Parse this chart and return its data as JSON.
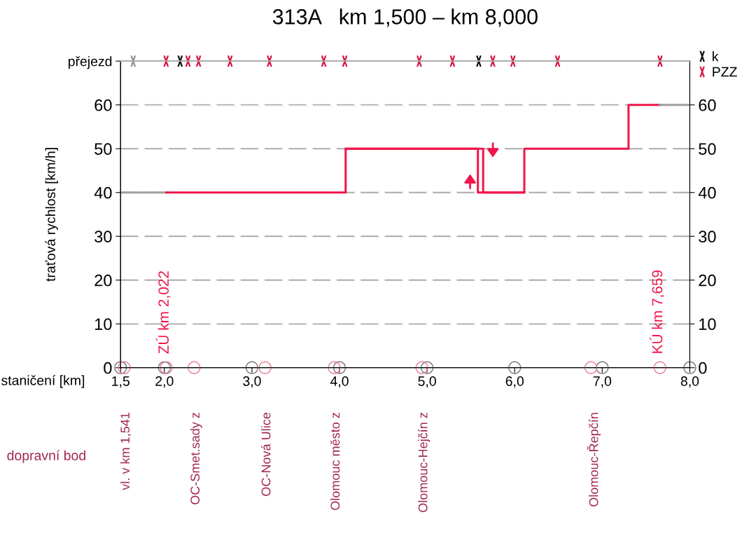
{
  "chart_data": {
    "type": "step",
    "title": "313A   km 1,500 – km 8,000",
    "xlabel": "staničení [km]",
    "ylabel": "traťová rychlost [km/h]",
    "xlim": [
      1.5,
      8.0
    ],
    "xticks": [
      {
        "value": 1.5,
        "label": "1,5"
      },
      {
        "value": 2,
        "label": "2,0"
      },
      {
        "value": 3,
        "label": "3,0"
      },
      {
        "value": 4,
        "label": "4,0"
      },
      {
        "value": 5,
        "label": "5,0"
      },
      {
        "value": 6,
        "label": "6,0"
      },
      {
        "value": 7,
        "label": "7,0"
      },
      {
        "value": 8,
        "label": "8,0"
      }
    ],
    "ylim": [
      0,
      70
    ],
    "yticks": [
      0,
      10,
      20,
      30,
      40,
      50,
      60,
      {
        "value": 70,
        "label": "přejezd"
      }
    ],
    "y2lim": [
      0,
      70
    ],
    "y2ticks": [
      0,
      10,
      20,
      30,
      40,
      50,
      60
    ],
    "grid": "y",
    "legend": "top right",
    "line_style": "solid",
    "series": [
      {
        "color": "#a0a0a0",
        "x": [
          1.5,
          2.022
        ],
        "values": [
          40,
          40
        ]
      },
      {
        "color": "#f0174b",
        "x": [
          2.022,
          4.07,
          5.58,
          6.11,
          7.3,
          7.659
        ],
        "values": [
          40,
          50,
          40,
          50,
          60,
          60
        ]
      },
      {
        "color": "#f0174b",
        "x": [
          4.07,
          5.64,
          6.11
        ],
        "values": [
          50,
          40,
          40
        ]
      },
      {
        "color": "#a0a0a0",
        "x": [
          7.659,
          8.0
        ],
        "values": [
          60,
          60
        ]
      },
      {
        "type": "scatter",
        "marker": "cross",
        "color": "#909090",
        "x": [
          1.644
        ],
        "values": [
          70
        ]
      },
      {
        "type": "scatter",
        "marker": "cross",
        "name": "k",
        "color": "#111111",
        "x": [
          2.18,
          5.59
        ],
        "values": [
          70,
          70
        ]
      },
      {
        "type": "scatter",
        "marker": "cross",
        "name": "PZZ",
        "color": "#d81740",
        "x": [
          2.02,
          2.27,
          2.39,
          2.75,
          3.2,
          3.82,
          4.06,
          4.91,
          5.29,
          5.75,
          5.98,
          6.49,
          7.66
        ],
        "values": [
          70,
          70,
          70,
          70,
          70,
          70,
          70,
          70,
          70,
          70,
          70,
          70,
          70
        ]
      },
      {
        "type": "scatter",
        "marker": "circle",
        "color": "#707070",
        "x": [
          1.5,
          2,
          3,
          4,
          5,
          6,
          7,
          8
        ],
        "values": [
          0,
          0,
          0,
          0,
          0,
          0,
          0,
          0
        ]
      },
      {
        "type": "scatter",
        "marker": "circle",
        "color": "#e87890",
        "x": [
          1.541,
          2.022,
          2.34,
          3.15,
          3.94,
          4.94,
          6.87,
          7.659
        ],
        "values": [
          0,
          0,
          0,
          0,
          0,
          0,
          0,
          0
        ],
        "value_labels": [
          "vl. v km 1,541",
          null,
          "OC-Smet.sady z",
          "OC-Nová Ulice",
          "Olomouc město z",
          "Olomouc-Hejčín z",
          "Olomouc-Řepčín",
          null
        ]
      }
    ],
    "annotations": [
      "dopravní bod",
      {
        "text": "ZÚ km 2,022",
        "x": 2.022,
        "y": 0
      },
      {
        "text": "KÚ km 7,659",
        "x": 7.659,
        "y": 0
      }
    ]
  }
}
